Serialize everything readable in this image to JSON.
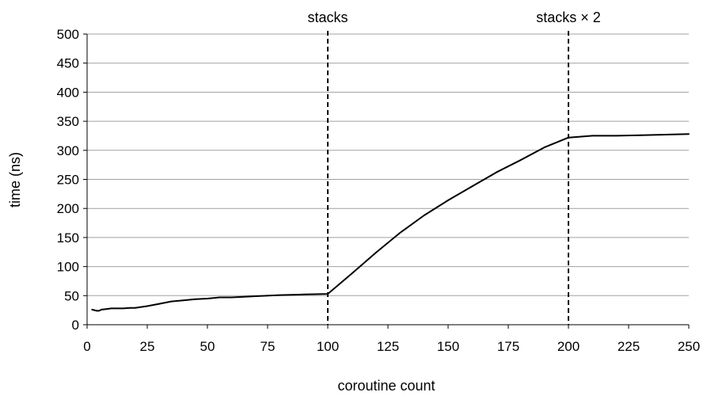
{
  "chart_data": {
    "type": "line",
    "title": "",
    "xlabel": "coroutine count",
    "ylabel": "time (ns)",
    "xlim": [
      0,
      250
    ],
    "ylim": [
      0,
      500
    ],
    "xticks": [
      0,
      25,
      50,
      75,
      100,
      125,
      150,
      175,
      200,
      225,
      250
    ],
    "yticks": [
      0,
      50,
      100,
      150,
      200,
      250,
      300,
      350,
      400,
      450,
      500
    ],
    "grid": "horizontal",
    "legend": "none",
    "colors": {
      "line": "#000000",
      "grid": "#a0a0a0",
      "axis": "#000000"
    },
    "annotations": [
      {
        "x": 100,
        "label": "stacks",
        "style": "dashed-vertical"
      },
      {
        "x": 200,
        "label": "stacks × 2",
        "style": "dashed-vertical"
      }
    ],
    "series": [
      {
        "x": [
          2,
          3,
          4,
          5,
          6,
          8,
          10,
          12,
          15,
          18,
          20,
          25,
          30,
          35,
          40,
          45,
          50,
          55,
          60,
          70,
          80,
          90,
          100,
          110,
          120,
          130,
          140,
          150,
          160,
          170,
          180,
          190,
          200,
          210,
          220,
          230,
          240,
          250
        ],
        "y": [
          26,
          25,
          24,
          24,
          26,
          27,
          28,
          28,
          28,
          29,
          29,
          32,
          36,
          40,
          42,
          44,
          45,
          47,
          47,
          49,
          51,
          52,
          53,
          88,
          124,
          158,
          188,
          214,
          238,
          262,
          283,
          305,
          322,
          325,
          325,
          326,
          327,
          328
        ]
      }
    ]
  }
}
